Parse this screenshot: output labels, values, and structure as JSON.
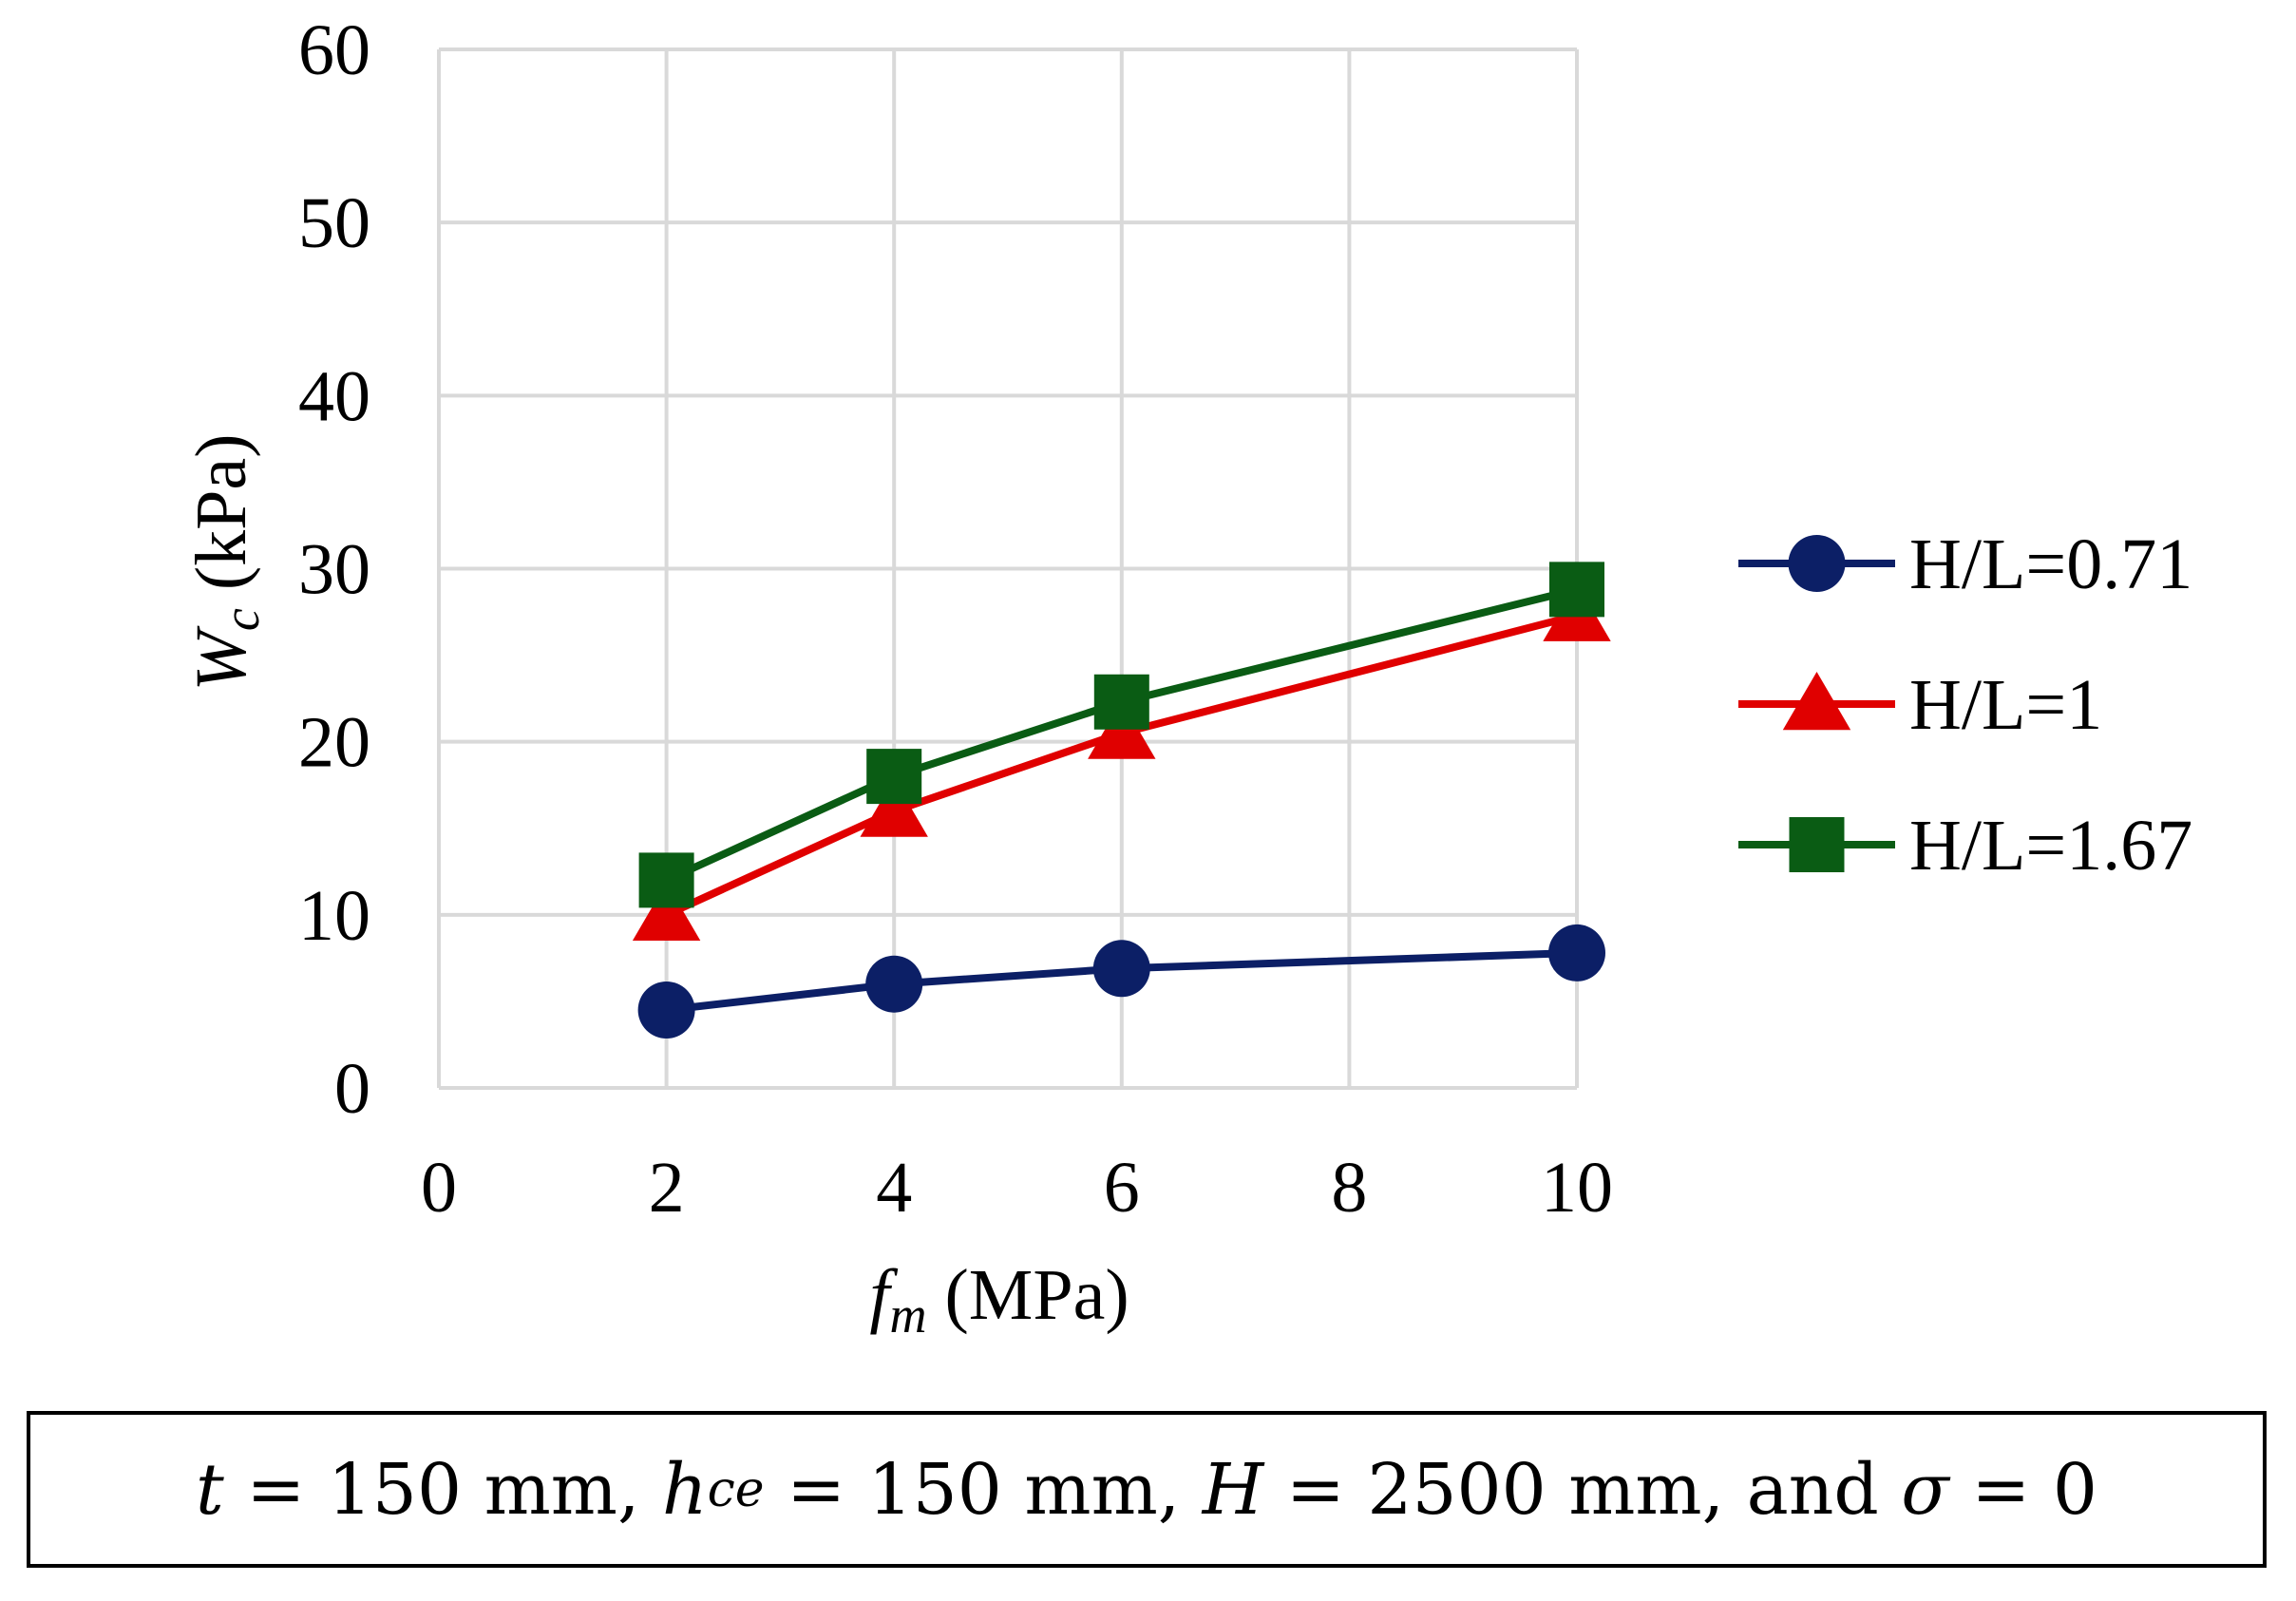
{
  "chart_data": {
    "type": "line",
    "title": "",
    "x": [
      2,
      4,
      6,
      10
    ],
    "series": [
      {
        "name": "H/L=0.71",
        "values": [
          4.5,
          6.0,
          6.9,
          7.8
        ],
        "color": "#0c1f66",
        "marker": "circle"
      },
      {
        "name": "H/L=1",
        "values": [
          10.0,
          16.0,
          20.5,
          27.3
        ],
        "color": "#e00000",
        "marker": "triangle"
      },
      {
        "name": "H/L=1.67",
        "values": [
          12.0,
          18.0,
          22.3,
          28.8
        ],
        "color": "#0a5c14",
        "marker": "square"
      }
    ],
    "xlabel": {
      "symbol": "f",
      "sub": "m",
      "unit": " (MPa)"
    },
    "ylabel": {
      "symbol": "W",
      "sub": "c",
      "unit": " (kPa)"
    },
    "xlim": [
      0,
      10
    ],
    "ylim": [
      0,
      60
    ],
    "xticks": [
      0,
      2,
      4,
      6,
      8,
      10
    ],
    "yticks": [
      0,
      10,
      20,
      30,
      40,
      50,
      60
    ],
    "grid": true,
    "legend": "right"
  },
  "note": {
    "t_sym": "t",
    "t_val": " = 150 mm, ",
    "h_sym": "h",
    "h_sub": "ce",
    "h_val": " = 150 mm, ",
    "H_sym": "H",
    "H_val": " = 2500 mm, and ",
    "sigma_sym": "σ",
    "sigma_val": " = 0"
  }
}
